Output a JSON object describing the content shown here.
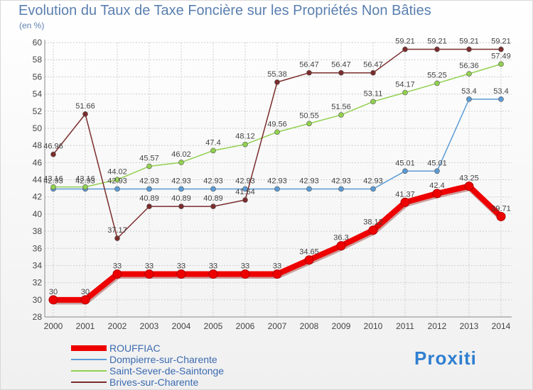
{
  "title": "Evolution du Taux de Taxe Foncière sur les Propriétés Non Bâties",
  "unit": "(en %)",
  "logo": "Proxiti",
  "colors": {
    "grid": "#cfcfcf",
    "axis": "#888888",
    "tick": "#444444",
    "label": "#444444"
  },
  "chart_data": {
    "type": "line",
    "title": "Evolution du Taux de Taxe Foncière sur les Propriétés Non Bâties",
    "ylabel": "(en %)",
    "xlabel": "",
    "ylim": [
      28,
      60
    ],
    "y_ticks": [
      "28",
      "30",
      "32",
      "34",
      "36",
      "38",
      "40",
      "42",
      "44",
      "46",
      "48",
      "50",
      "52",
      "54",
      "56",
      "58",
      "60"
    ],
    "x": [
      "2000",
      "2001",
      "2002",
      "2003",
      "2004",
      "2005",
      "2006",
      "2007",
      "2008",
      "2009",
      "2010",
      "2011",
      "2012",
      "2013",
      "2014"
    ],
    "series": [
      {
        "name": "ROUFFIAC",
        "color": "#ee0000",
        "highlight": true,
        "values": [
          30,
          30,
          33,
          33,
          33,
          33,
          33,
          33,
          34.65,
          36.3,
          38.12,
          41.37,
          42.4,
          43.25,
          39.71
        ],
        "labels": [
          "30",
          "30",
          "33",
          "33",
          "33",
          "33",
          "33",
          "33",
          "34.65",
          "36.3",
          "38.12",
          "41.37",
          "42.4",
          "43.25",
          "39.71"
        ]
      },
      {
        "name": "Dompierre-sur-Charente",
        "color": "#5b9bd5",
        "values": [
          42.93,
          42.93,
          42.93,
          42.93,
          42.93,
          42.93,
          42.93,
          42.93,
          42.93,
          42.93,
          42.93,
          45.01,
          45.01,
          53.4,
          53.4
        ],
        "labels": [
          "42.93",
          "42.93",
          "42.93",
          "42.93",
          "42.93",
          "42.93",
          "42.93",
          "42.93",
          "42.93",
          "42.93",
          "42.93",
          "45.01",
          "45.01",
          "53.4",
          "53.4"
        ]
      },
      {
        "name": "Saint-Sever-de-Saintonge",
        "color": "#92d050",
        "values": [
          43.16,
          43.16,
          44.02,
          45.57,
          46.02,
          47.4,
          48.12,
          49.56,
          50.55,
          51.56,
          53.11,
          54.17,
          55.25,
          56.36,
          57.49
        ],
        "labels": [
          "43.16",
          "43.16",
          "44.02",
          "45.57",
          "46.02",
          "47.4",
          "48.12",
          "49.56",
          "50.55",
          "51.56",
          "53.11",
          "54.17",
          "55.25",
          "56.36",
          "57.49"
        ]
      },
      {
        "name": "Brives-sur-Charente",
        "color": "#7b2c2c",
        "values": [
          46.96,
          51.66,
          37.17,
          40.89,
          40.89,
          40.89,
          41.64,
          55.38,
          56.47,
          56.47,
          56.47,
          59.21,
          59.21,
          59.21,
          59.21
        ],
        "labels": [
          "46.96",
          "51.66",
          "37.17",
          "40.89",
          "40.89",
          "40.89",
          "41.64",
          "55.38",
          "56.47",
          "56.47",
          "56.47",
          "59.21",
          "59.21",
          "59.21",
          "59.21"
        ]
      }
    ],
    "grid": true,
    "legend_position": "bottom-left"
  }
}
